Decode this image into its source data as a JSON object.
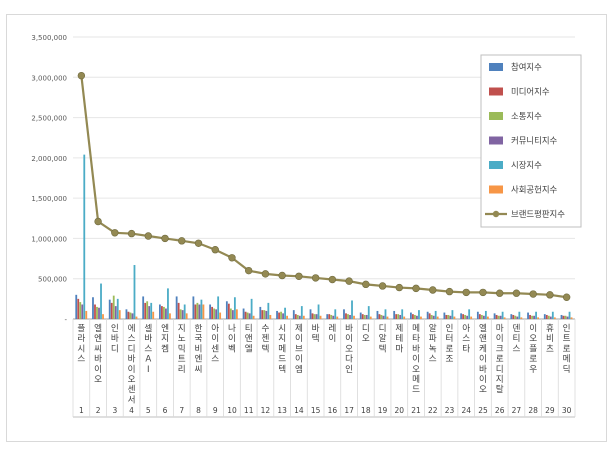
{
  "chart_data": {
    "type": "bar",
    "y_ticks": [
      "3,500,000",
      "3,000,000",
      "2,500,000",
      "2,000,000",
      "1,500,000",
      "1,000,000",
      "500,000",
      "-"
    ],
    "ylim": [
      0,
      3500000
    ],
    "categories": [
      "플라시스",
      "엘엔씨바이오",
      "인바디",
      "에스디바이오센서",
      "셀바스AI",
      "엔지켐",
      "지노믹트리",
      "한국비엔씨",
      "아이센스",
      "나이벡",
      "티앤엘",
      "수젠텍",
      "시지메드텍",
      "제이브이엠",
      "바텍",
      "레이",
      "바이오다인",
      "디오",
      "디알텍",
      "제테마",
      "메타바이오메드",
      "알파녹스",
      "인터로조",
      "아스타",
      "엘앤케이바이오",
      "마이크로디지탈",
      "덴티스",
      "이오플로우",
      "휴비츠",
      "인트로메딕"
    ],
    "category_numbers": [
      "1",
      "2",
      "3",
      "4",
      "5",
      "6",
      "7",
      "8",
      "9",
      "10",
      "11",
      "12",
      "13",
      "14",
      "15",
      "16",
      "17",
      "18",
      "19",
      "20",
      "21",
      "22",
      "23",
      "24",
      "25",
      "26",
      "27",
      "28",
      "29",
      "30"
    ],
    "series": [
      {
        "name": "참여지수",
        "color": "#4f81bd",
        "type": "bar",
        "values": [
          300000,
          270000,
          240000,
          120000,
          280000,
          180000,
          280000,
          280000,
          180000,
          220000,
          130000,
          150000,
          100000,
          110000,
          120000,
          60000,
          120000,
          80000,
          100000,
          100000,
          80000,
          90000,
          80000,
          70000,
          90000,
          70000,
          60000,
          80000,
          60000,
          50000
        ]
      },
      {
        "name": "미디어지수",
        "color": "#c0504d",
        "type": "bar",
        "values": [
          250000,
          180000,
          200000,
          90000,
          200000,
          160000,
          200000,
          180000,
          150000,
          190000,
          90000,
          110000,
          80000,
          60000,
          70000,
          60000,
          70000,
          60000,
          60000,
          60000,
          60000,
          70000,
          50000,
          60000,
          60000,
          50000,
          50000,
          50000,
          50000,
          40000
        ]
      },
      {
        "name": "소통지수",
        "color": "#9bbb59",
        "type": "bar",
        "values": [
          210000,
          150000,
          290000,
          80000,
          220000,
          150000,
          120000,
          200000,
          130000,
          130000,
          80000,
          110000,
          90000,
          50000,
          60000,
          50000,
          60000,
          50000,
          50000,
          60000,
          50000,
          50000,
          50000,
          50000,
          50000,
          40000,
          40000,
          40000,
          40000,
          40000
        ]
      },
      {
        "name": "커뮤니티지수",
        "color": "#8064a2",
        "type": "bar",
        "values": [
          180000,
          140000,
          160000,
          70000,
          160000,
          130000,
          110000,
          180000,
          120000,
          110000,
          70000,
          100000,
          70000,
          40000,
          60000,
          40000,
          50000,
          50000,
          40000,
          50000,
          40000,
          40000,
          40000,
          40000,
          40000,
          40000,
          30000,
          40000,
          30000,
          30000
        ]
      },
      {
        "name": "시장지수",
        "color": "#4bacc6",
        "type": "bar",
        "values": [
          2040000,
          440000,
          250000,
          670000,
          200000,
          380000,
          180000,
          240000,
          280000,
          270000,
          250000,
          200000,
          140000,
          160000,
          180000,
          120000,
          230000,
          160000,
          120000,
          120000,
          110000,
          100000,
          110000,
          120000,
          100000,
          90000,
          90000,
          90000,
          90000,
          90000
        ]
      },
      {
        "name": "사회공헌지수",
        "color": "#f79646",
        "type": "bar",
        "values": [
          100000,
          60000,
          110000,
          30000,
          90000,
          70000,
          70000,
          180000,
          80000,
          120000,
          40000,
          50000,
          40000,
          40000,
          40000,
          30000,
          40000,
          30000,
          30000,
          30000,
          30000,
          30000,
          30000,
          30000,
          30000,
          20000,
          20000,
          20000,
          20000,
          20000
        ]
      },
      {
        "name": "브랜드평판지수",
        "color": "#938953",
        "type": "line",
        "values": [
          3020000,
          1210000,
          1070000,
          1060000,
          1030000,
          1000000,
          970000,
          940000,
          860000,
          760000,
          600000,
          560000,
          540000,
          530000,
          510000,
          490000,
          470000,
          430000,
          410000,
          390000,
          380000,
          360000,
          340000,
          330000,
          330000,
          320000,
          320000,
          310000,
          300000,
          270000
        ]
      }
    ]
  }
}
